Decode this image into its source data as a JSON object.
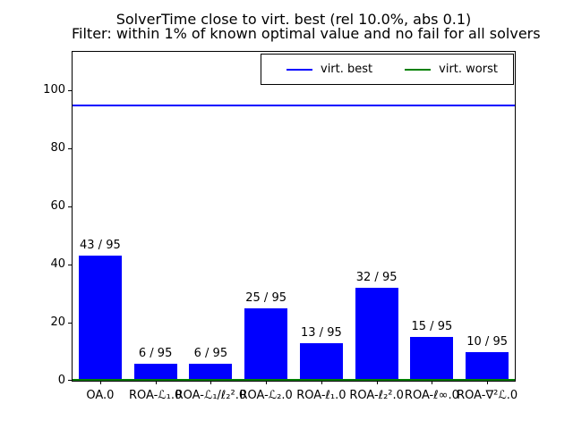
{
  "chart_data": {
    "type": "bar",
    "title": "SolverTime close to virt. best (rel 10.0%, abs 0.1)",
    "subtitle": "Filter: within 1% of known optimal value and no fail for all solvers",
    "xlabel": "",
    "ylabel": "",
    "categories": [
      "OA.0",
      "ROA-ℒ₁.0",
      "ROA-ℒ₁/ℓ₂².0",
      "ROA-ℒ₂.0",
      "ROA-ℓ₁.0",
      "ROA-ℓ₂².0",
      "ROA-ℓ∞.0",
      "ROA-∇²ℒ.0"
    ],
    "values": [
      43,
      6,
      6,
      25,
      13,
      32,
      15,
      10
    ],
    "bar_labels": [
      "43 / 95",
      "6 / 95",
      "6 / 95",
      "25 / 95",
      "13 / 95",
      "32 / 95",
      "15 / 95",
      "10 / 95"
    ],
    "total": 95,
    "bar_color": "#0000ff",
    "yticks": [
      0,
      20,
      40,
      60,
      80,
      100
    ],
    "ylim": [
      0,
      113.4
    ],
    "grid": false,
    "legend_position": "upper right",
    "hlines": [
      {
        "label": "virt. best",
        "y": 95,
        "color": "#0000ff"
      },
      {
        "label": "virt. worst",
        "y": 0,
        "color": "#008000"
      }
    ]
  }
}
